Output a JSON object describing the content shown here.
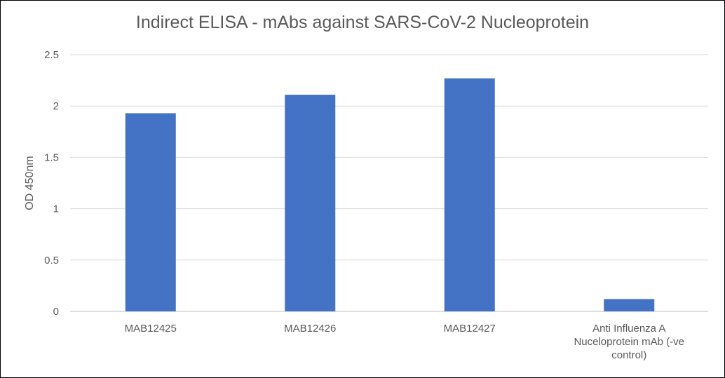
{
  "chart_data": {
    "type": "bar",
    "title": "Indirect ELISA - mAbs against SARS-CoV-2 Nucleoprotein",
    "xlabel": "",
    "ylabel": "OD 450nm",
    "categories": [
      [
        "MAB12425"
      ],
      [
        "MAB12426"
      ],
      [
        "MAB12427"
      ],
      [
        "Anti Influenza A",
        "Nuceloprotein mAb (-ve",
        "control)"
      ]
    ],
    "values": [
      1.93,
      2.11,
      2.27,
      0.12
    ],
    "ylim": [
      0,
      2.5
    ],
    "yticks": [
      "0",
      "0.5",
      "1",
      "1.5",
      "2",
      "2.5"
    ],
    "bar_color": "#4472C4",
    "grid": true,
    "legend": "none"
  }
}
